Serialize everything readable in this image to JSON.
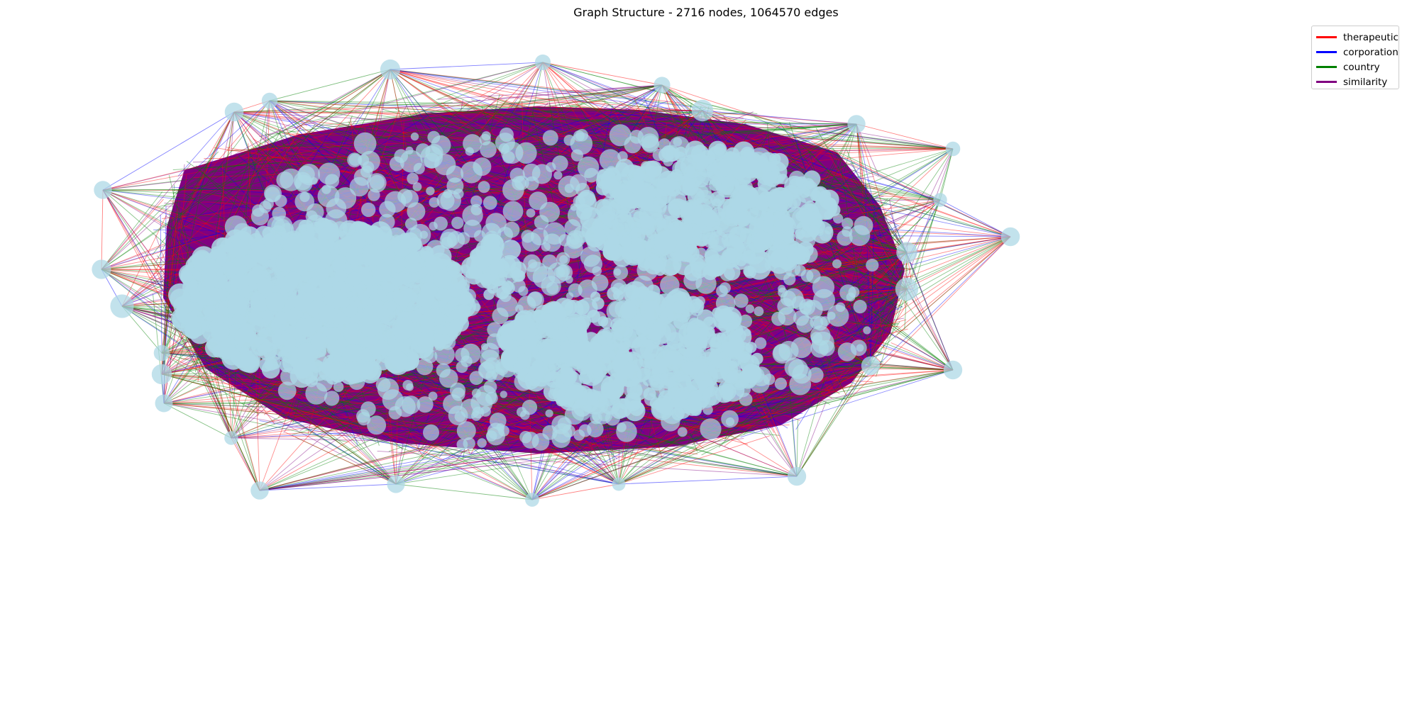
{
  "title": "Graph Structure - 2716 nodes, 1064570 edges",
  "node_count": 2716,
  "edge_count": 1064570,
  "node_color": "#add8e6",
  "legend": [
    {
      "label": "therapeutic",
      "color": "#ff0000"
    },
    {
      "label": "corporation",
      "color": "#0000ff"
    },
    {
      "label": "country",
      "color": "#008000"
    },
    {
      "label": "similarity",
      "color": "#800080"
    }
  ]
}
